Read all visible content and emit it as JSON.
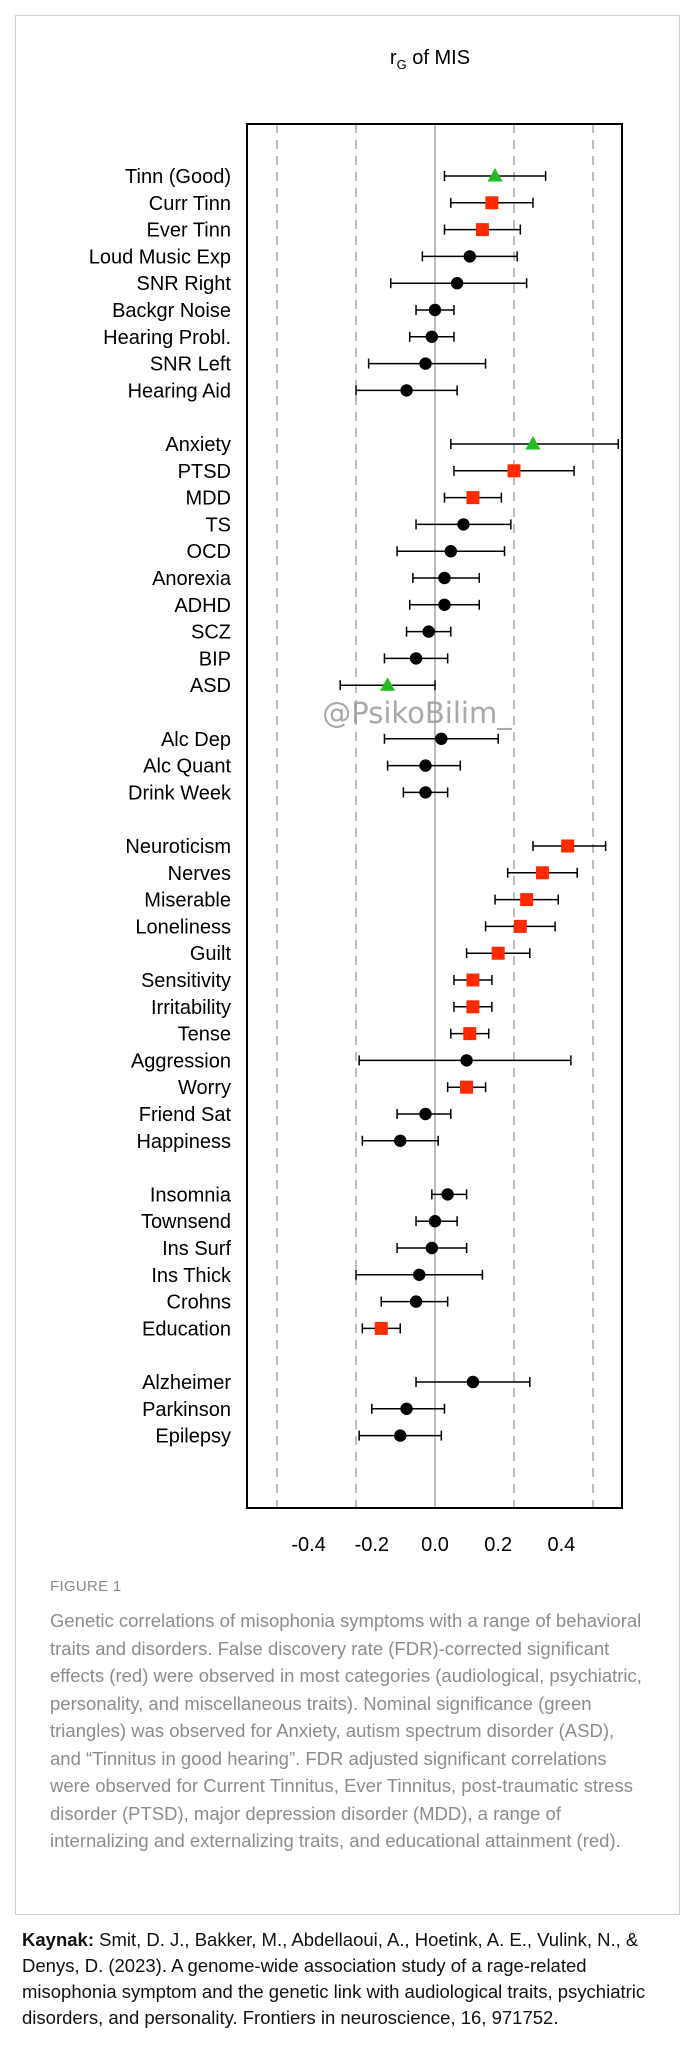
{
  "chart_data": {
    "type": "scatter",
    "title_prefix": "r",
    "title_subscript": "G",
    "title_suffix": " of MIS",
    "xlim": [
      -0.6,
      0.6
    ],
    "x_ticks": [
      -0.4,
      -0.2,
      0.0,
      0.2,
      0.4
    ],
    "x_tick_labels": [
      "-0.4",
      "-0.2",
      "0.0",
      "0.2",
      "0.4"
    ],
    "dashed_gridlines": [
      -0.5,
      -0.25,
      0.25,
      0.5
    ],
    "zero_line": 0.0,
    "colors": {
      "not_significant": "#000000",
      "fdr_significant": "#ff2a00",
      "nominal": "#22bb22"
    },
    "groups": [
      {
        "points": [
          {
            "label": "Tinn (Good)",
            "value": 0.19,
            "lo": 0.03,
            "hi": 0.35,
            "marker": "triangle",
            "color": "#22bb22"
          },
          {
            "label": "Curr Tinn",
            "value": 0.18,
            "lo": 0.05,
            "hi": 0.31,
            "marker": "square",
            "color": "#ff2a00"
          },
          {
            "label": "Ever Tinn",
            "value": 0.15,
            "lo": 0.03,
            "hi": 0.27,
            "marker": "square",
            "color": "#ff2a00"
          },
          {
            "label": "Loud Music Exp",
            "value": 0.11,
            "lo": -0.04,
            "hi": 0.26,
            "marker": "circle",
            "color": "#000000"
          },
          {
            "label": "SNR Right",
            "value": 0.07,
            "lo": -0.14,
            "hi": 0.29,
            "marker": "circle",
            "color": "#000000"
          },
          {
            "label": "Backgr Noise",
            "value": 0.0,
            "lo": -0.06,
            "hi": 0.06,
            "marker": "circle",
            "color": "#000000"
          },
          {
            "label": "Hearing Probl.",
            "value": -0.01,
            "lo": -0.08,
            "hi": 0.06,
            "marker": "circle",
            "color": "#000000"
          },
          {
            "label": "SNR Left",
            "value": -0.03,
            "lo": -0.21,
            "hi": 0.16,
            "marker": "circle",
            "color": "#000000"
          },
          {
            "label": "Hearing Aid",
            "value": -0.09,
            "lo": -0.25,
            "hi": 0.07,
            "marker": "circle",
            "color": "#000000"
          }
        ]
      },
      {
        "points": [
          {
            "label": "Anxiety",
            "value": 0.31,
            "lo": 0.05,
            "hi": 0.58,
            "marker": "triangle",
            "color": "#22bb22"
          },
          {
            "label": "PTSD",
            "value": 0.25,
            "lo": 0.06,
            "hi": 0.44,
            "marker": "square",
            "color": "#ff2a00"
          },
          {
            "label": "MDD",
            "value": 0.12,
            "lo": 0.03,
            "hi": 0.21,
            "marker": "square",
            "color": "#ff2a00"
          },
          {
            "label": "TS",
            "value": 0.09,
            "lo": -0.06,
            "hi": 0.24,
            "marker": "circle",
            "color": "#000000"
          },
          {
            "label": "OCD",
            "value": 0.05,
            "lo": -0.12,
            "hi": 0.22,
            "marker": "circle",
            "color": "#000000"
          },
          {
            "label": "Anorexia",
            "value": 0.03,
            "lo": -0.07,
            "hi": 0.14,
            "marker": "circle",
            "color": "#000000"
          },
          {
            "label": "ADHD",
            "value": 0.03,
            "lo": -0.08,
            "hi": 0.14,
            "marker": "circle",
            "color": "#000000"
          },
          {
            "label": "SCZ",
            "value": -0.02,
            "lo": -0.09,
            "hi": 0.05,
            "marker": "circle",
            "color": "#000000"
          },
          {
            "label": "BIP",
            "value": -0.06,
            "lo": -0.16,
            "hi": 0.04,
            "marker": "circle",
            "color": "#000000"
          },
          {
            "label": "ASD",
            "value": -0.15,
            "lo": -0.3,
            "hi": 0.0,
            "marker": "triangle",
            "color": "#22bb22"
          }
        ]
      },
      {
        "points": [
          {
            "label": "Alc Dep",
            "value": 0.02,
            "lo": -0.16,
            "hi": 0.2,
            "marker": "circle",
            "color": "#000000"
          },
          {
            "label": "Alc Quant",
            "value": -0.03,
            "lo": -0.15,
            "hi": 0.08,
            "marker": "circle",
            "color": "#000000"
          },
          {
            "label": "Drink Week",
            "value": -0.03,
            "lo": -0.1,
            "hi": 0.04,
            "marker": "circle",
            "color": "#000000"
          }
        ]
      },
      {
        "points": [
          {
            "label": "Neuroticism",
            "value": 0.42,
            "lo": 0.31,
            "hi": 0.54,
            "marker": "square",
            "color": "#ff2a00"
          },
          {
            "label": "Nerves",
            "value": 0.34,
            "lo": 0.23,
            "hi": 0.45,
            "marker": "square",
            "color": "#ff2a00"
          },
          {
            "label": "Miserable",
            "value": 0.29,
            "lo": 0.19,
            "hi": 0.39,
            "marker": "square",
            "color": "#ff2a00"
          },
          {
            "label": "Loneliness",
            "value": 0.27,
            "lo": 0.16,
            "hi": 0.38,
            "marker": "square",
            "color": "#ff2a00"
          },
          {
            "label": "Guilt",
            "value": 0.2,
            "lo": 0.1,
            "hi": 0.3,
            "marker": "square",
            "color": "#ff2a00"
          },
          {
            "label": "Sensitivity",
            "value": 0.12,
            "lo": 0.06,
            "hi": 0.18,
            "marker": "square",
            "color": "#ff2a00"
          },
          {
            "label": "Irritability",
            "value": 0.12,
            "lo": 0.06,
            "hi": 0.18,
            "marker": "square",
            "color": "#ff2a00"
          },
          {
            "label": "Tense",
            "value": 0.11,
            "lo": 0.05,
            "hi": 0.17,
            "marker": "square",
            "color": "#ff2a00"
          },
          {
            "label": "Aggression",
            "value": 0.1,
            "lo": -0.24,
            "hi": 0.43,
            "marker": "circle",
            "color": "#000000"
          },
          {
            "label": "Worry",
            "value": 0.1,
            "lo": 0.04,
            "hi": 0.16,
            "marker": "square",
            "color": "#ff2a00"
          },
          {
            "label": "Friend Sat",
            "value": -0.03,
            "lo": -0.12,
            "hi": 0.05,
            "marker": "circle",
            "color": "#000000"
          },
          {
            "label": "Happiness",
            "value": -0.11,
            "lo": -0.23,
            "hi": 0.01,
            "marker": "circle",
            "color": "#000000"
          }
        ]
      },
      {
        "points": [
          {
            "label": "Insomnia",
            "value": 0.04,
            "lo": -0.01,
            "hi": 0.1,
            "marker": "circle",
            "color": "#000000"
          },
          {
            "label": "Townsend",
            "value": 0.0,
            "lo": -0.06,
            "hi": 0.07,
            "marker": "circle",
            "color": "#000000"
          },
          {
            "label": "Ins Surf",
            "value": -0.01,
            "lo": -0.12,
            "hi": 0.1,
            "marker": "circle",
            "color": "#000000"
          },
          {
            "label": "Ins Thick",
            "value": -0.05,
            "lo": -0.25,
            "hi": 0.15,
            "marker": "circle",
            "color": "#000000"
          },
          {
            "label": "Crohns",
            "value": -0.06,
            "lo": -0.17,
            "hi": 0.04,
            "marker": "circle",
            "color": "#000000"
          },
          {
            "label": "Education",
            "value": -0.17,
            "lo": -0.23,
            "hi": -0.11,
            "marker": "square",
            "color": "#ff2a00"
          }
        ]
      },
      {
        "points": [
          {
            "label": "Alzheimer",
            "value": 0.12,
            "lo": -0.06,
            "hi": 0.3,
            "marker": "circle",
            "color": "#000000"
          },
          {
            "label": "Parkinson",
            "value": -0.09,
            "lo": -0.2,
            "hi": 0.03,
            "marker": "circle",
            "color": "#000000"
          },
          {
            "label": "Epilepsy",
            "value": -0.11,
            "lo": -0.24,
            "hi": 0.02,
            "marker": "circle",
            "color": "#000000"
          }
        ]
      }
    ]
  },
  "watermark": "@PsikoBilim_",
  "caption": {
    "figure_label": "FIGURE 1",
    "text": "Genetic correlations of misophonia symptoms with a range of behavioral traits and disorders. False discovery rate (FDR)-corrected significant effects (red) were observed in most categories (audiological, psychiatric, personality, and miscellaneous traits). Nominal significance (green triangles) was observed for Anxiety, autism spectrum disorder (ASD), and “Tinnitus in good hearing”. FDR adjusted significant correlations were observed for Current Tinnitus, Ever Tinnitus, post-traumatic stress disorder (PTSD), major depression disorder (MDD), a range of internalizing and externalizing traits, and educational attainment (red)."
  },
  "source": {
    "label": "Kaynak:",
    "text": " Smit, D. J., Bakker, M., Abdellaoui, A., Hoetink, A. E., Vulink, N., & Denys, D. (2023). A genome-wide association study of a rage-related misophonia symptom and the genetic link with audiological traits, psychiatric disorders, and personality. Frontiers in neuroscience, 16, 971752."
  }
}
